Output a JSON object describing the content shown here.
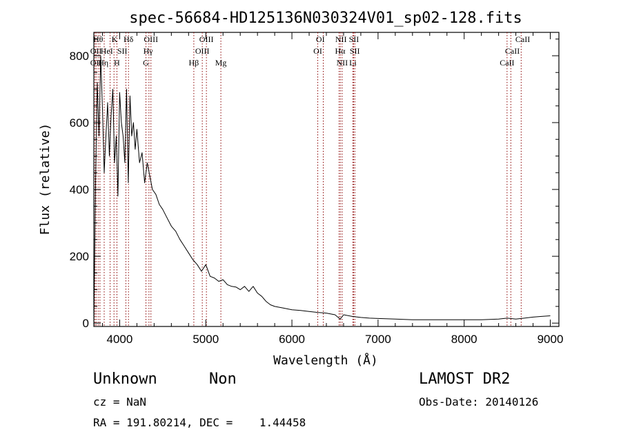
{
  "chart_data": {
    "type": "line",
    "title": "spec-56684-HD125136N030324V01_sp02-128.fits",
    "xlabel": "Wavelength (Å)",
    "ylabel": "Flux (relative)",
    "xlim": [
      3700,
      9100
    ],
    "ylim": [
      -10,
      870
    ],
    "x_ticks": [
      4000,
      5000,
      6000,
      7000,
      8000,
      9000
    ],
    "y_ticks": [
      0,
      200,
      400,
      600,
      800
    ],
    "line_color": "#000000",
    "marker_color": "#8b0000",
    "series": [
      {
        "x": [
          3700,
          3720,
          3740,
          3760,
          3780,
          3800,
          3820,
          3840,
          3860,
          3880,
          3900,
          3920,
          3940,
          3960,
          3980,
          4000,
          4020,
          4040,
          4060,
          4080,
          4100,
          4120,
          4140,
          4160,
          4180,
          4200,
          4230,
          4260,
          4290,
          4320,
          4350,
          4380,
          4420,
          4460,
          4500,
          4550,
          4600,
          4650,
          4700,
          4750,
          4800,
          4850,
          4900,
          4950,
          5000,
          5050,
          5100,
          5150,
          5200,
          5250,
          5300,
          5350,
          5400,
          5450,
          5500,
          5550,
          5600,
          5650,
          5700,
          5750,
          5800,
          5900,
          6000,
          6100,
          6200,
          6300,
          6400,
          6500,
          6560,
          6600,
          6700,
          6800,
          6900,
          7000,
          7200,
          7400,
          7600,
          7800,
          8000,
          8200,
          8400,
          8500,
          8600,
          8700,
          8800,
          8900,
          9000
        ],
        "y": [
          0,
          420,
          720,
          560,
          800,
          640,
          450,
          560,
          660,
          500,
          620,
          700,
          480,
          560,
          380,
          690,
          600,
          560,
          480,
          700,
          420,
          680,
          560,
          600,
          520,
          580,
          480,
          510,
          420,
          480,
          440,
          400,
          385,
          355,
          340,
          315,
          290,
          275,
          250,
          230,
          210,
          190,
          175,
          155,
          175,
          140,
          135,
          125,
          130,
          115,
          110,
          108,
          100,
          110,
          95,
          110,
          90,
          80,
          65,
          55,
          50,
          45,
          40,
          38,
          35,
          32,
          30,
          25,
          12,
          25,
          20,
          17,
          15,
          14,
          12,
          10,
          10,
          10,
          10,
          10,
          12,
          15,
          12,
          15,
          18,
          20,
          22
        ]
      }
    ],
    "line_markers": [
      {
        "x": 3713,
        "labels": [
          "OII"
        ]
      },
      {
        "x": 3727,
        "labels": [
          "OII"
        ]
      },
      {
        "x": 3750,
        "labels": [
          "Hθ"
        ]
      },
      {
        "x": 3771,
        "labels": [
          "Hη"
        ]
      },
      {
        "x": 3820,
        "labels": [
          "HeI"
        ]
      },
      {
        "x": 3889,
        "labels": [
          "Hη"
        ]
      },
      {
        "x": 3934,
        "labels": [
          "K"
        ]
      },
      {
        "x": 3968,
        "labels": [
          "H"
        ]
      },
      {
        "x": 4072,
        "labels": [
          "SII"
        ]
      },
      {
        "x": 4102,
        "labels": [
          "Hδ"
        ]
      },
      {
        "x": 4305,
        "labels": [
          "G"
        ]
      },
      {
        "x": 4340,
        "labels": [
          "Hγ"
        ]
      },
      {
        "x": 4363,
        "labels": [
          "OIII"
        ]
      },
      {
        "x": 4861,
        "labels": [
          "Hβ"
        ]
      },
      {
        "x": 4959,
        "labels": [
          "OIII"
        ]
      },
      {
        "x": 5007,
        "labels": [
          "OIII"
        ]
      },
      {
        "x": 5175,
        "labels": [
          "Mg"
        ]
      },
      {
        "x": 6300,
        "labels": [
          "OI"
        ]
      },
      {
        "x": 6364,
        "labels": [
          "OI"
        ]
      },
      {
        "x": 6548,
        "labels": [
          "NII"
        ]
      },
      {
        "x": 6563,
        "labels": [
          "Hα"
        ]
      },
      {
        "x": 6583,
        "labels": [
          "NII"
        ]
      },
      {
        "x": 6708,
        "labels": [
          "Li"
        ]
      },
      {
        "x": 6716,
        "labels": [
          "SII"
        ]
      },
      {
        "x": 6731,
        "labels": [
          "SII"
        ]
      },
      {
        "x": 8498,
        "labels": [
          "CaII"
        ]
      },
      {
        "x": 8542,
        "labels": [
          "CaII"
        ]
      },
      {
        "x": 8662,
        "labels": [
          "CaII"
        ]
      }
    ],
    "line_label_rows": [
      [
        {
          "x": 3750,
          "text": "Hθ"
        },
        {
          "x": 3940,
          "text": "K"
        },
        {
          "x": 4102,
          "text": "Hδ"
        },
        {
          "x": 4363,
          "text": "OIII"
        },
        {
          "x": 5007,
          "text": "OIII"
        },
        {
          "x": 6330,
          "text": "OI"
        },
        {
          "x": 6570,
          "text": "NII"
        },
        {
          "x": 6720,
          "text": "SII"
        },
        {
          "x": 8680,
          "text": "CaII"
        }
      ],
      [
        {
          "x": 3725,
          "text": "OII"
        },
        {
          "x": 3850,
          "text": "HeI"
        },
        {
          "x": 4030,
          "text": "SII"
        },
        {
          "x": 4330,
          "text": "Hγ"
        },
        {
          "x": 4959,
          "text": "OIII"
        },
        {
          "x": 6300,
          "text": "OI"
        },
        {
          "x": 6560,
          "text": "Hα"
        },
        {
          "x": 6730,
          "text": "SII"
        },
        {
          "x": 8560,
          "text": "CaII"
        }
      ],
      [
        {
          "x": 3725,
          "text": "OII"
        },
        {
          "x": 3810,
          "text": "Hη"
        },
        {
          "x": 3968,
          "text": "H"
        },
        {
          "x": 4305,
          "text": "G"
        },
        {
          "x": 4861,
          "text": "Hβ"
        },
        {
          "x": 5175,
          "text": "Mg"
        },
        {
          "x": 6583,
          "text": "NII"
        },
        {
          "x": 6708,
          "text": "Li"
        },
        {
          "x": 8498,
          "text": "CaII"
        }
      ]
    ]
  },
  "footer": {
    "object_name": "Unknown",
    "object_type": "Non",
    "survey": "LAMOST DR2",
    "cz": "cz = NaN",
    "obs_date": "Obs-Date: 20140126",
    "coords": "RA = 191.80214, DEC =    1.44458"
  }
}
